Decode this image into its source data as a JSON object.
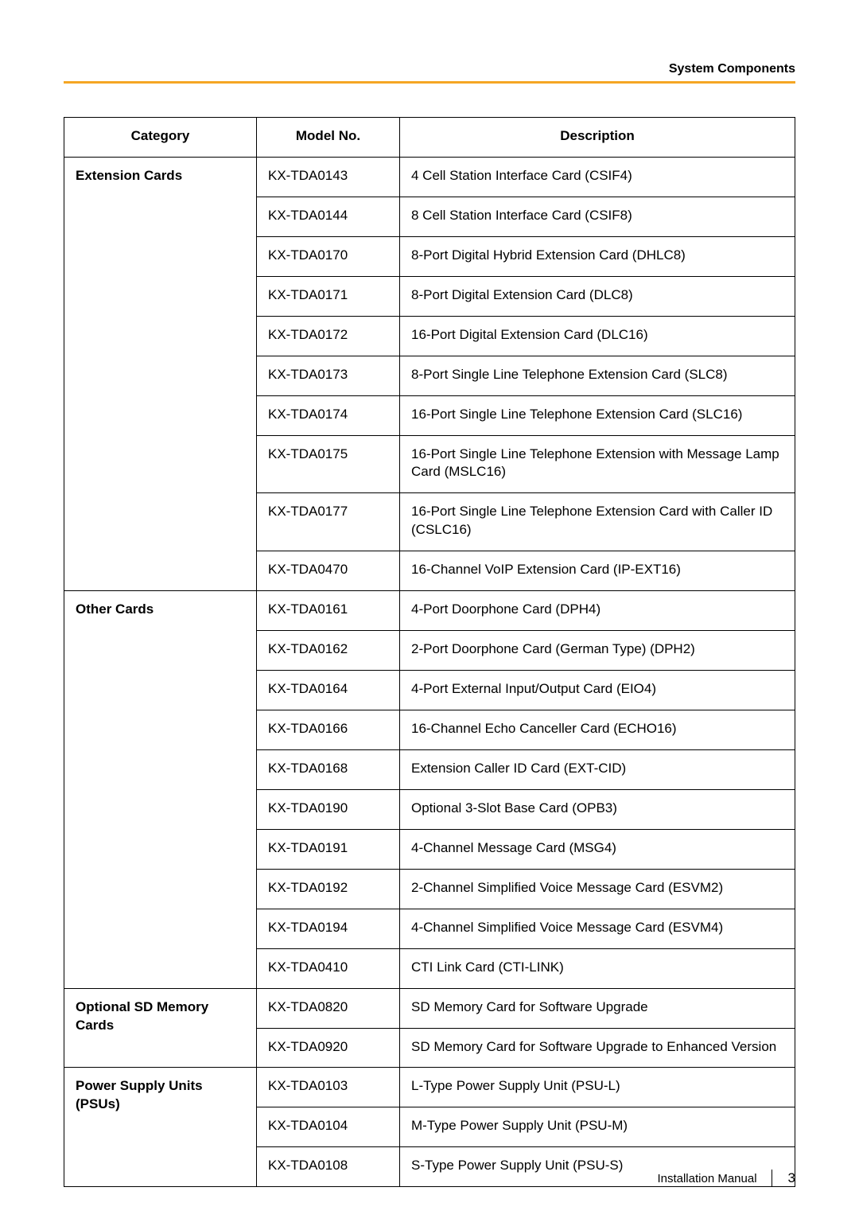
{
  "header": {
    "section_title": "System Components",
    "rule_color": "#f5a623"
  },
  "table": {
    "columns": {
      "category": "Category",
      "model": "Model No.",
      "description": "Description"
    },
    "col_widths": {
      "category": 242,
      "model": 180
    },
    "groups": [
      {
        "category": "Extension Cards",
        "rows": [
          {
            "model": "KX-TDA0143",
            "desc": "4 Cell Station Interface Card (CSIF4)"
          },
          {
            "model": "KX-TDA0144",
            "desc": "8 Cell Station Interface Card (CSIF8)"
          },
          {
            "model": "KX-TDA0170",
            "desc": "8-Port Digital Hybrid Extension Card (DHLC8)"
          },
          {
            "model": "KX-TDA0171",
            "desc": "8-Port Digital Extension Card (DLC8)"
          },
          {
            "model": "KX-TDA0172",
            "desc": "16-Port Digital Extension Card (DLC16)"
          },
          {
            "model": "KX-TDA0173",
            "desc": "8-Port Single Line Telephone Extension Card (SLC8)"
          },
          {
            "model": "KX-TDA0174",
            "desc": "16-Port Single Line Telephone Extension Card (SLC16)"
          },
          {
            "model": "KX-TDA0175",
            "desc": "16-Port Single Line Telephone Extension with Message Lamp Card (MSLC16)"
          },
          {
            "model": "KX-TDA0177",
            "desc": "16-Port Single Line Telephone Extension Card with Caller ID (CSLC16)"
          },
          {
            "model": "KX-TDA0470",
            "desc": "16-Channel VoIP Extension Card (IP-EXT16)"
          }
        ]
      },
      {
        "category": "Other Cards",
        "rows": [
          {
            "model": "KX-TDA0161",
            "desc": "4-Port Doorphone Card (DPH4)"
          },
          {
            "model": "KX-TDA0162",
            "desc": "2-Port Doorphone Card (German Type) (DPH2)"
          },
          {
            "model": "KX-TDA0164",
            "desc": "4-Port External Input/Output Card (EIO4)"
          },
          {
            "model": "KX-TDA0166",
            "desc": "16-Channel Echo Canceller Card (ECHO16)"
          },
          {
            "model": "KX-TDA0168",
            "desc": "Extension Caller ID Card (EXT-CID)"
          },
          {
            "model": "KX-TDA0190",
            "desc": "Optional 3-Slot Base Card (OPB3)"
          },
          {
            "model": "KX-TDA0191",
            "desc": "4-Channel Message Card (MSG4)"
          },
          {
            "model": "KX-TDA0192",
            "desc": "2-Channel Simplified Voice Message Card (ESVM2)"
          },
          {
            "model": "KX-TDA0194",
            "desc": "4-Channel Simplified Voice Message Card (ESVM4)"
          },
          {
            "model": "KX-TDA0410",
            "desc": "CTI Link Card (CTI-LINK)"
          }
        ]
      },
      {
        "category": "Optional SD Memory Cards",
        "rows": [
          {
            "model": "KX-TDA0820",
            "desc": "SD Memory Card for Software Upgrade"
          },
          {
            "model": "KX-TDA0920",
            "desc": "SD Memory Card for Software Upgrade to Enhanced Version"
          }
        ]
      },
      {
        "category": "Power Supply Units (PSUs)",
        "rows": [
          {
            "model": "KX-TDA0103",
            "desc": "L-Type Power Supply Unit (PSU-L)"
          },
          {
            "model": "KX-TDA0104",
            "desc": "M-Type Power Supply Unit (PSU-M)"
          },
          {
            "model": "KX-TDA0108",
            "desc": "S-Type Power Supply Unit (PSU-S)"
          }
        ]
      }
    ]
  },
  "footer": {
    "doc_title": "Installation Manual",
    "page_number": "3"
  }
}
